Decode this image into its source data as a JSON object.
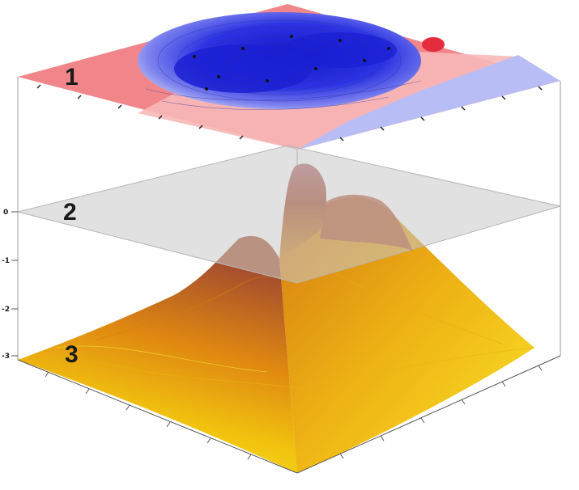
{
  "layers": [
    {
      "label": "1"
    },
    {
      "label": "2"
    },
    {
      "label": "3"
    }
  ],
  "vertical_axis": {
    "ticks": [
      "0",
      "-1",
      "-2",
      "-3"
    ]
  },
  "colors": {
    "map_red": "#f0868a",
    "map_pink": "#f7b8b8",
    "map_light_blue": "#b9bdf5",
    "map_blue": "#3b43e6",
    "map_deep_blue": "#1c22d6",
    "plane_gray": "#c9c9c9",
    "surface_yellow": "#f4dc12",
    "surface_orange": "#e49b0c",
    "surface_brown": "#a54a26"
  }
}
